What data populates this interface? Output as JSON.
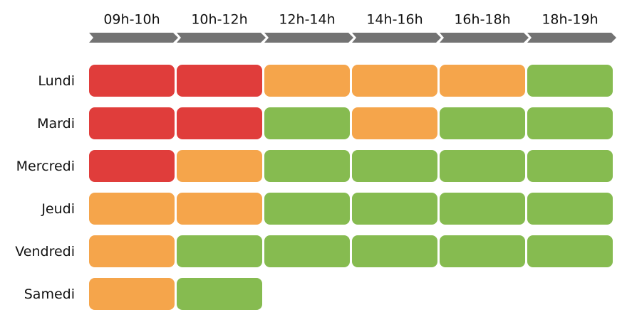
{
  "columns": [
    "09h-10h",
    "10h-12h",
    "12h-14h",
    "14h-16h",
    "16h-18h",
    "18h-19h"
  ],
  "rows": [
    {
      "label": "Lundi",
      "cells": [
        "#e03d3b",
        "#e03d3b",
        "#f5a54b",
        "#f5a54b",
        "#f5a54b",
        "#86bb50"
      ]
    },
    {
      "label": "Mardi",
      "cells": [
        "#e03d3b",
        "#e03d3b",
        "#86bb50",
        "#f5a54b",
        "#86bb50",
        "#86bb50"
      ]
    },
    {
      "label": "Mercredi",
      "cells": [
        "#e03d3b",
        "#f5a54b",
        "#86bb50",
        "#86bb50",
        "#86bb50",
        "#86bb50"
      ]
    },
    {
      "label": "Jeudi",
      "cells": [
        "#f5a54b",
        "#f5a54b",
        "#86bb50",
        "#86bb50",
        "#86bb50",
        "#86bb50"
      ]
    },
    {
      "label": "Vendredi",
      "cells": [
        "#f5a54b",
        "#86bb50",
        "#86bb50",
        "#86bb50",
        "#86bb50",
        "#86bb50"
      ]
    },
    {
      "label": "Samedi",
      "cells": [
        "#f5a54b",
        "#86bb50"
      ]
    }
  ],
  "arrow_color": "#737373"
}
